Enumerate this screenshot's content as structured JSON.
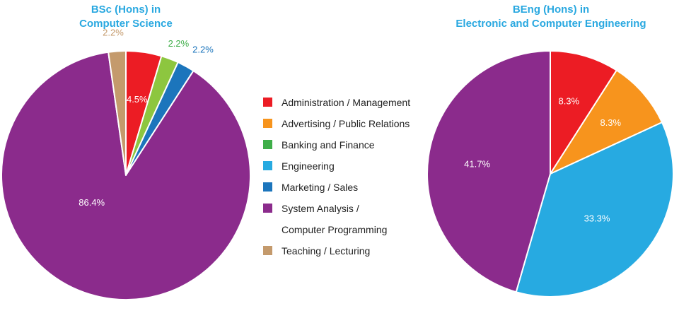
{
  "colors": {
    "title": "#29a8e0",
    "label_inside": "#ffffff"
  },
  "legend": [
    {
      "label": "Administration / Management",
      "color": "#ec1c24"
    },
    {
      "label": "Advertising / Public Relations",
      "color": "#f7941d"
    },
    {
      "label": "Banking and Finance",
      "color": "#3fae49"
    },
    {
      "label": "Engineering",
      "color": "#27aae1"
    },
    {
      "label": "Marketing / Sales",
      "color": "#1c75bc"
    },
    {
      "label": "System Analysis /",
      "label2": "Computer Programming",
      "color": "#8b2b8c"
    },
    {
      "label": "Teaching / Lecturing",
      "color": "#c49a6c"
    }
  ],
  "chart_data": [
    {
      "type": "pie",
      "title_lines": [
        "BSc (Hons) in",
        "Computer Science"
      ],
      "slices": [
        {
          "category": "Administration / Management",
          "value": 4.5,
          "label": "4.5%",
          "color": "#ec1c24",
          "label_color": "#ffffff"
        },
        {
          "category": "Banking and Finance",
          "value": 2.2,
          "label": "2.2%",
          "color": "#8dc63f",
          "label_color": "#3fae49"
        },
        {
          "category": "Marketing / Sales",
          "value": 2.2,
          "label": "2.2%",
          "color": "#1c75bc",
          "label_color": "#1c75bc"
        },
        {
          "category": "System Analysis / Computer Programming",
          "value": 86.4,
          "label": "86.4%",
          "color": "#8b2b8c",
          "label_color": "#ffffff"
        },
        {
          "category": "Teaching / Lecturing",
          "value": 2.2,
          "label": "2.2%",
          "color": "#c49a6c",
          "label_color": "#c49a6c"
        }
      ]
    },
    {
      "type": "pie",
      "title_lines": [
        "BEng (Hons) in",
        "Electronic and Computer Engineering"
      ],
      "slices": [
        {
          "category": "Administration / Management",
          "value": 8.3,
          "label": "8.3%",
          "color": "#ec1c24",
          "label_color": "#ffffff"
        },
        {
          "category": "Advertising / Public Relations",
          "value": 8.3,
          "label": "8.3%",
          "color": "#f7941d",
          "label_color": "#ffffff"
        },
        {
          "category": "Engineering",
          "value": 33.3,
          "label": "33.3%",
          "color": "#27aae1",
          "label_color": "#ffffff"
        },
        {
          "category": "System Analysis / Computer Programming",
          "value": 41.7,
          "label": "41.7%",
          "color": "#8b2b8c",
          "label_color": "#ffffff"
        }
      ]
    }
  ]
}
